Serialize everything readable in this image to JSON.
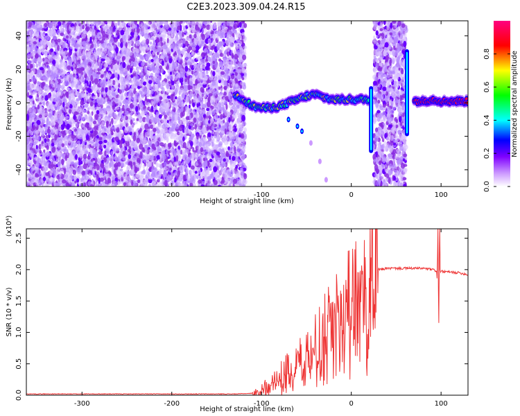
{
  "title": "C2E3.2023.309.04.24.R15",
  "chart_data": [
    {
      "type": "heatmap",
      "xlabel": "Height of straight line (km)",
      "ylabel": "Frequency (Hz)",
      "xlim": [
        -362,
        130
      ],
      "ylim": [
        -50,
        49
      ],
      "xticks": [
        -300,
        -200,
        -100,
        0,
        100
      ],
      "xtick_labels": [
        "-300",
        "-200",
        "-100",
        "0",
        "100"
      ],
      "yticks": [
        -40,
        -20,
        0,
        20,
        40
      ],
      "ytick_labels": [
        "-40",
        "-20",
        "0",
        "20",
        "40"
      ],
      "colorbar": {
        "label": "Normalized spectral amplitude",
        "range": [
          0,
          1
        ],
        "ticks": [
          0.0,
          0.2,
          0.4,
          0.6,
          0.8
        ],
        "tick_labels": [
          "0.0",
          "0.2",
          "0.4",
          "0.6",
          "0.8"
        ],
        "colormap": [
          "#ffffff",
          "#cc99ff",
          "#7f00ff",
          "#0000ff",
          "#00ffff",
          "#00ff00",
          "#ffff00",
          "#ff0000",
          "#ff0080"
        ]
      },
      "noise_regions": [
        {
          "x": [
            -362,
            -118
          ],
          "y": [
            -50,
            49
          ],
          "level": 0.3
        },
        {
          "x": [
            25,
            61
          ],
          "y": [
            -50,
            49
          ],
          "level": 0.3
        }
      ],
      "signal_trace": [
        {
          "x": -130,
          "y": 5
        },
        {
          "x": -120,
          "y": 2
        },
        {
          "x": -110,
          "y": -2
        },
        {
          "x": -100,
          "y": -3
        },
        {
          "x": -90,
          "y": -3
        },
        {
          "x": -80,
          "y": -2
        },
        {
          "x": -70,
          "y": 0
        },
        {
          "x": -60,
          "y": 2
        },
        {
          "x": -50,
          "y": 4
        },
        {
          "x": -40,
          "y": 5
        },
        {
          "x": -30,
          "y": 3
        },
        {
          "x": -20,
          "y": 2
        },
        {
          "x": -10,
          "y": 2
        },
        {
          "x": 0,
          "y": 2
        },
        {
          "x": 10,
          "y": 2
        },
        {
          "x": 20,
          "y": 2
        },
        {
          "x": 70,
          "y": 1
        },
        {
          "x": 80,
          "y": 1
        },
        {
          "x": 90,
          "y": 2
        },
        {
          "x": 100,
          "y": 1
        },
        {
          "x": 110,
          "y": 1
        },
        {
          "x": 120,
          "y": 1
        },
        {
          "x": 130,
          "y": 1
        }
      ],
      "secondary_trace": [
        {
          "x": -70,
          "y": -10
        },
        {
          "x": -60,
          "y": -14
        },
        {
          "x": -55,
          "y": -17
        },
        {
          "x": -45,
          "y": -24
        },
        {
          "x": -35,
          "y": -35
        },
        {
          "x": -28,
          "y": -46
        }
      ],
      "vertical_spikes": [
        {
          "x": 22,
          "y": [
            -30,
            10
          ]
        },
        {
          "x": 62,
          "y": [
            -20,
            32
          ]
        }
      ]
    },
    {
      "type": "line",
      "xlabel": "Height of straight line (km)",
      "ylabel": "SNR (10 * v/v)",
      "scale_label": "(x10⁴)",
      "xlim": [
        -362,
        130
      ],
      "ylim": [
        0,
        2.65
      ],
      "xticks": [
        -300,
        -200,
        -100,
        0,
        100
      ],
      "xtick_labels": [
        "-300",
        "-200",
        "-100",
        "0",
        "100"
      ],
      "yticks": [
        0.0,
        0.5,
        1.0,
        1.5,
        2.0,
        2.5
      ],
      "ytick_labels": [
        "0.0",
        "0.5",
        "1.0",
        "1.5",
        "2.0",
        "2.5"
      ],
      "color": "#ee3333",
      "series": [
        {
          "x": [
            -362,
            -300,
            -200,
            -130,
            -110,
            -100,
            -90,
            -80,
            -70,
            -60,
            -50,
            -40,
            -30,
            -20,
            -10,
            0,
            10,
            20,
            25,
            30,
            40,
            50,
            60,
            70,
            80,
            90,
            95,
            97,
            100,
            110,
            120,
            130
          ],
          "y": [
            0.02,
            0.02,
            0.02,
            0.02,
            0.03,
            0.1,
            0.2,
            0.3,
            0.45,
            0.55,
            0.7,
            0.9,
            1.05,
            1.2,
            1.4,
            1.6,
            1.8,
            1.9,
            1.97,
            2.0,
            2.02,
            2.02,
            2.02,
            2.02,
            2.02,
            2.0,
            1.98,
            2.0,
            1.97,
            1.96,
            1.95,
            1.92
          ]
        }
      ]
    }
  ]
}
